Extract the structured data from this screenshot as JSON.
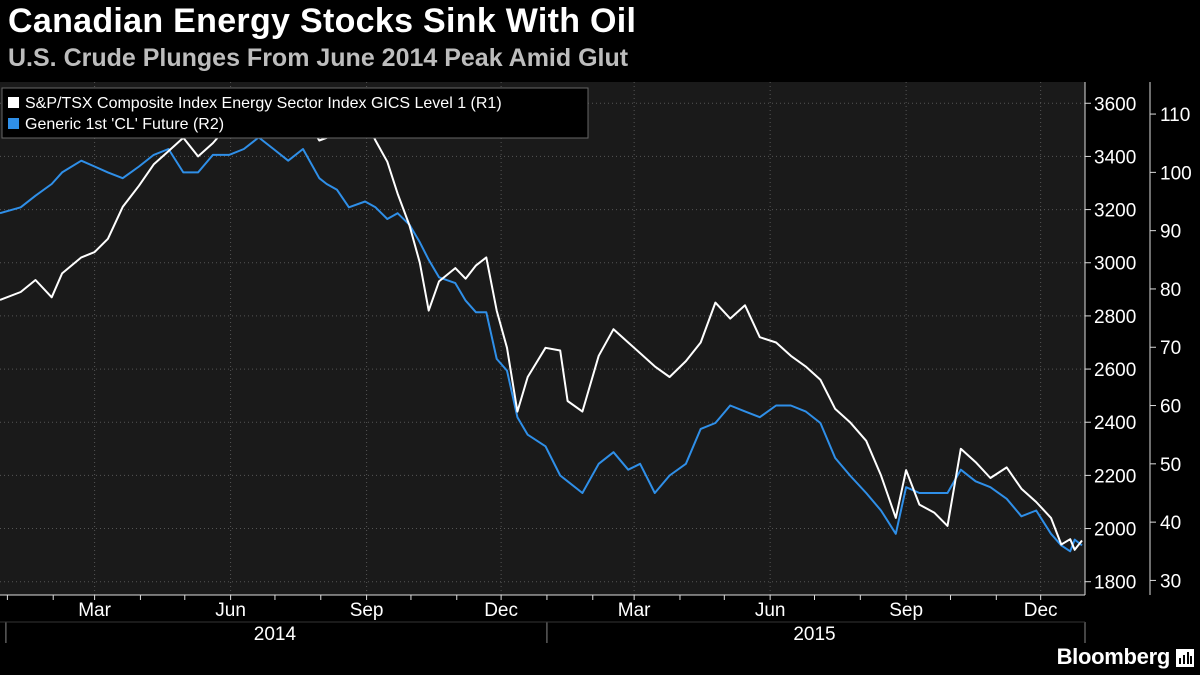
{
  "title": "Canadian Energy Stocks Sink With Oil",
  "subtitle": "U.S. Crude Plunges From June 2014 Peak Amid Glut",
  "brand": "Bloomberg",
  "chart_data": {
    "type": "line",
    "background": "#1a1a1a",
    "grid": true,
    "legend_position": "top-left",
    "x_range": [
      "2013-12-27",
      "2015-12-31"
    ],
    "x_month_ticks": [
      "Mar",
      "Jun",
      "Sep",
      "Dec",
      "Mar",
      "Jun",
      "Sep",
      "Dec"
    ],
    "x_tick_dates": [
      "2014-03-01",
      "2014-06-01",
      "2014-09-01",
      "2014-12-01",
      "2015-03-01",
      "2015-06-01",
      "2015-09-01",
      "2015-12-01"
    ],
    "x_year_labels": [
      "2014",
      "2015"
    ],
    "r1_axis": {
      "ylim": [
        1750,
        3680
      ],
      "ticks": [
        1800,
        2000,
        2200,
        2400,
        2600,
        2800,
        3000,
        3200,
        3400,
        3600
      ]
    },
    "r2_axis": {
      "ylim": [
        27.5,
        115.5
      ],
      "ticks": [
        30,
        40,
        50,
        60,
        70,
        80,
        90,
        100,
        110
      ]
    },
    "series": [
      {
        "name": "S&P/TSX Composite Index Energy Sector Index GICS Level 1  (R1)",
        "axis": "r1",
        "color": "#ffffff",
        "points": [
          [
            "2013-12-27",
            2860
          ],
          [
            "2014-01-10",
            2890
          ],
          [
            "2014-01-20",
            2935
          ],
          [
            "2014-01-31",
            2870
          ],
          [
            "2014-02-07",
            2960
          ],
          [
            "2014-02-20",
            3020
          ],
          [
            "2014-03-01",
            3040
          ],
          [
            "2014-03-10",
            3090
          ],
          [
            "2014-03-20",
            3210
          ],
          [
            "2014-03-31",
            3290
          ],
          [
            "2014-04-10",
            3370
          ],
          [
            "2014-04-20",
            3420
          ],
          [
            "2014-04-30",
            3470
          ],
          [
            "2014-05-10",
            3400
          ],
          [
            "2014-05-20",
            3450
          ],
          [
            "2014-05-31",
            3520
          ],
          [
            "2014-06-10",
            3580
          ],
          [
            "2014-06-20",
            3560
          ],
          [
            "2014-06-30",
            3520
          ],
          [
            "2014-07-10",
            3480
          ],
          [
            "2014-07-20",
            3560
          ],
          [
            "2014-07-31",
            3460
          ],
          [
            "2014-08-05",
            3470
          ],
          [
            "2014-08-12",
            3580
          ],
          [
            "2014-08-20",
            3560
          ],
          [
            "2014-08-31",
            3540
          ],
          [
            "2014-09-07",
            3460
          ],
          [
            "2014-09-15",
            3380
          ],
          [
            "2014-09-22",
            3260
          ],
          [
            "2014-09-30",
            3140
          ],
          [
            "2014-10-07",
            3000
          ],
          [
            "2014-10-13",
            2820
          ],
          [
            "2014-10-20",
            2930
          ],
          [
            "2014-10-31",
            2980
          ],
          [
            "2014-11-07",
            2940
          ],
          [
            "2014-11-14",
            2990
          ],
          [
            "2014-11-21",
            3020
          ],
          [
            "2014-11-28",
            2820
          ],
          [
            "2014-12-05",
            2680
          ],
          [
            "2014-12-12",
            2440
          ],
          [
            "2014-12-19",
            2570
          ],
          [
            "2014-12-31",
            2680
          ],
          [
            "2015-01-10",
            2670
          ],
          [
            "2015-01-15",
            2480
          ],
          [
            "2015-01-25",
            2440
          ],
          [
            "2015-02-05",
            2650
          ],
          [
            "2015-02-15",
            2750
          ],
          [
            "2015-02-25",
            2700
          ],
          [
            "2015-03-05",
            2660
          ],
          [
            "2015-03-15",
            2610
          ],
          [
            "2015-03-25",
            2570
          ],
          [
            "2015-04-05",
            2630
          ],
          [
            "2015-04-15",
            2700
          ],
          [
            "2015-04-25",
            2850
          ],
          [
            "2015-05-05",
            2790
          ],
          [
            "2015-05-15",
            2840
          ],
          [
            "2015-05-25",
            2720
          ],
          [
            "2015-06-05",
            2700
          ],
          [
            "2015-06-15",
            2650
          ],
          [
            "2015-06-25",
            2610
          ],
          [
            "2015-07-05",
            2560
          ],
          [
            "2015-07-15",
            2450
          ],
          [
            "2015-07-25",
            2400
          ],
          [
            "2015-08-05",
            2330
          ],
          [
            "2015-08-15",
            2200
          ],
          [
            "2015-08-25",
            2040
          ],
          [
            "2015-09-01",
            2220
          ],
          [
            "2015-09-10",
            2090
          ],
          [
            "2015-09-20",
            2060
          ],
          [
            "2015-09-29",
            2010
          ],
          [
            "2015-10-08",
            2300
          ],
          [
            "2015-10-18",
            2250
          ],
          [
            "2015-10-28",
            2190
          ],
          [
            "2015-11-08",
            2230
          ],
          [
            "2015-11-18",
            2150
          ],
          [
            "2015-11-28",
            2100
          ],
          [
            "2015-12-08",
            2040
          ],
          [
            "2015-12-15",
            1940
          ],
          [
            "2015-12-21",
            1960
          ],
          [
            "2015-12-24",
            1920
          ],
          [
            "2015-12-29",
            1955
          ]
        ]
      },
      {
        "name": "Generic 1st 'CL' Future  (R2)",
        "axis": "r2",
        "color": "#2f8fe8",
        "points": [
          [
            "2013-12-27",
            93
          ],
          [
            "2014-01-10",
            94
          ],
          [
            "2014-01-20",
            96
          ],
          [
            "2014-01-31",
            98
          ],
          [
            "2014-02-07",
            100
          ],
          [
            "2014-02-20",
            102
          ],
          [
            "2014-03-01",
            101
          ],
          [
            "2014-03-10",
            100
          ],
          [
            "2014-03-20",
            99
          ],
          [
            "2014-03-31",
            101
          ],
          [
            "2014-04-10",
            103
          ],
          [
            "2014-04-20",
            104
          ],
          [
            "2014-04-30",
            100
          ],
          [
            "2014-05-10",
            100
          ],
          [
            "2014-05-20",
            103
          ],
          [
            "2014-05-31",
            103
          ],
          [
            "2014-06-10",
            104
          ],
          [
            "2014-06-20",
            106
          ],
          [
            "2014-06-30",
            104
          ],
          [
            "2014-07-10",
            102
          ],
          [
            "2014-07-20",
            104
          ],
          [
            "2014-07-31",
            99
          ],
          [
            "2014-08-05",
            98
          ],
          [
            "2014-08-12",
            97
          ],
          [
            "2014-08-20",
            94
          ],
          [
            "2014-08-31",
            95
          ],
          [
            "2014-09-07",
            94
          ],
          [
            "2014-09-15",
            92
          ],
          [
            "2014-09-22",
            93
          ],
          [
            "2014-09-30",
            91
          ],
          [
            "2014-10-07",
            88
          ],
          [
            "2014-10-13",
            85
          ],
          [
            "2014-10-20",
            82
          ],
          [
            "2014-10-31",
            81
          ],
          [
            "2014-11-07",
            78
          ],
          [
            "2014-11-14",
            76
          ],
          [
            "2014-11-21",
            76
          ],
          [
            "2014-11-28",
            68
          ],
          [
            "2014-12-05",
            66
          ],
          [
            "2014-12-12",
            58
          ],
          [
            "2014-12-19",
            55
          ],
          [
            "2014-12-31",
            53
          ],
          [
            "2015-01-10",
            48
          ],
          [
            "2015-01-15",
            47
          ],
          [
            "2015-01-25",
            45
          ],
          [
            "2015-02-05",
            50
          ],
          [
            "2015-02-15",
            52
          ],
          [
            "2015-02-25",
            49
          ],
          [
            "2015-03-05",
            50
          ],
          [
            "2015-03-15",
            45
          ],
          [
            "2015-03-25",
            48
          ],
          [
            "2015-04-05",
            50
          ],
          [
            "2015-04-15",
            56
          ],
          [
            "2015-04-25",
            57
          ],
          [
            "2015-05-05",
            60
          ],
          [
            "2015-05-15",
            59
          ],
          [
            "2015-05-25",
            58
          ],
          [
            "2015-06-05",
            60
          ],
          [
            "2015-06-15",
            60
          ],
          [
            "2015-06-25",
            59
          ],
          [
            "2015-07-05",
            57
          ],
          [
            "2015-07-15",
            51
          ],
          [
            "2015-07-25",
            48
          ],
          [
            "2015-08-05",
            45
          ],
          [
            "2015-08-15",
            42
          ],
          [
            "2015-08-25",
            38
          ],
          [
            "2015-09-01",
            46
          ],
          [
            "2015-09-10",
            45
          ],
          [
            "2015-09-20",
            45
          ],
          [
            "2015-09-29",
            45
          ],
          [
            "2015-10-08",
            49
          ],
          [
            "2015-10-18",
            47
          ],
          [
            "2015-10-28",
            46
          ],
          [
            "2015-11-08",
            44
          ],
          [
            "2015-11-18",
            41
          ],
          [
            "2015-11-28",
            42
          ],
          [
            "2015-12-08",
            38
          ],
          [
            "2015-12-15",
            36
          ],
          [
            "2015-12-21",
            35
          ],
          [
            "2015-12-24",
            37
          ],
          [
            "2015-12-29",
            36
          ]
        ]
      }
    ]
  }
}
